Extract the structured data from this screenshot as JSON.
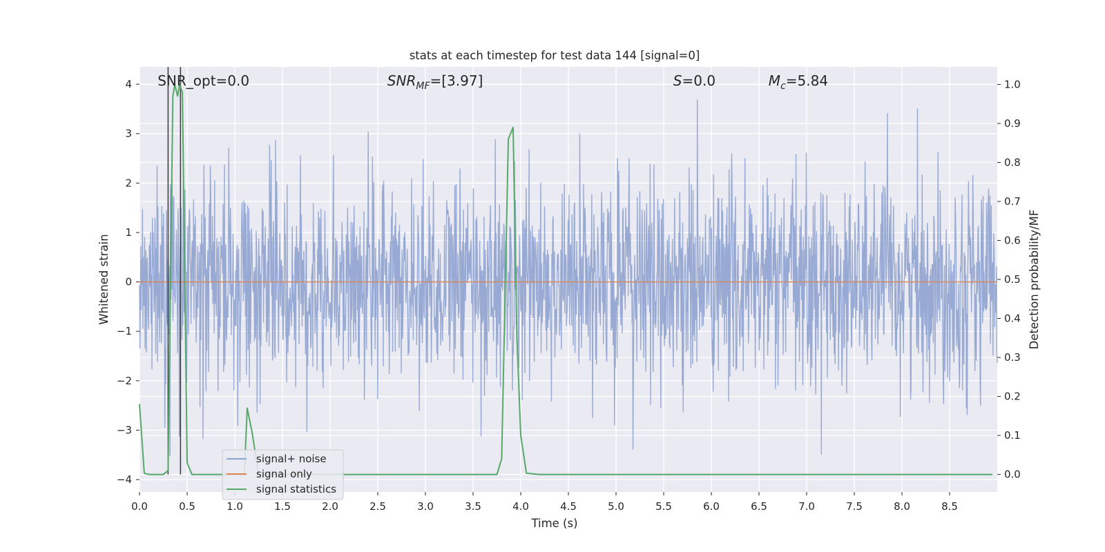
{
  "chart_data": {
    "type": "line",
    "title": "stats at each timestep for test data 144 [signal=0]",
    "xlabel": "Time (s)",
    "ylabel": "Whitened strain",
    "ylabel_right": "Detection probability/MF",
    "xlim": [
      0,
      9.0
    ],
    "ylim": [
      -4.25,
      4.35
    ],
    "ylim_right": [
      -0.045,
      1.045
    ],
    "x_ticks": [
      "0.0",
      "0.5",
      "1.0",
      "1.5",
      "2.0",
      "2.5",
      "3.0",
      "3.5",
      "4.0",
      "4.5",
      "5.0",
      "5.5",
      "6.0",
      "6.5",
      "7.0",
      "7.5",
      "8.0",
      "8.5"
    ],
    "y_ticks": [
      "−4",
      "−3",
      "−2",
      "−1",
      "0",
      "1",
      "2",
      "3",
      "4"
    ],
    "y_ticks_right": [
      "0.0",
      "0.1",
      "0.2",
      "0.3",
      "0.4",
      "0.5",
      "0.6",
      "0.7",
      "0.8",
      "0.9",
      "1.0"
    ],
    "grid": true,
    "legend_position": "lower-left",
    "colors": {
      "noise": "#8fa3cf",
      "signal": "#dd8452",
      "stat": "#55a868",
      "background": "#eaeaf2",
      "vline": "#404040"
    },
    "annotations": [
      {
        "label": "SNR_opt=0.0",
        "x": 0.19
      },
      {
        "label": "SNR",
        "sub": "MF",
        "value": "=[3.97]",
        "x": 2.6
      },
      {
        "label": "S",
        "value": "=0.0",
        "x": 5.6
      },
      {
        "label": "M",
        "sub": "c",
        "value": "=5.84",
        "x": 6.6
      }
    ],
    "vertical_lines_x": [
      0.3,
      0.43
    ],
    "series": [
      {
        "name": "signal+ noise",
        "description": "dense whitened noise, roughly within [-2.5, 2.5] with spikes to about ±3.8",
        "x_range": [
          0,
          9.0
        ],
        "sample_count": 2000
      },
      {
        "name": "signal only",
        "x": [
          0,
          9.0
        ],
        "y": [
          0,
          0
        ]
      },
      {
        "name": "signal statistics",
        "axis": "right",
        "x": [
          0.0,
          0.05,
          0.1,
          0.2,
          0.25,
          0.3,
          0.35,
          0.37,
          0.4,
          0.42,
          0.45,
          0.5,
          0.55,
          0.6,
          1.0,
          1.1,
          1.13,
          1.18,
          1.25,
          1.35,
          3.75,
          3.8,
          3.87,
          3.92,
          3.96,
          4.0,
          4.06,
          4.2,
          8.95
        ],
        "y": [
          0.18,
          0.003,
          0.0,
          0.0,
          0.0,
          0.01,
          0.97,
          1.0,
          0.97,
          1.0,
          0.98,
          0.03,
          0.0,
          0.0,
          0.0,
          0.0,
          0.17,
          0.11,
          0.0,
          0.0,
          0.0,
          0.04,
          0.86,
          0.89,
          0.35,
          0.1,
          0.003,
          0.0,
          0.0
        ]
      }
    ]
  }
}
